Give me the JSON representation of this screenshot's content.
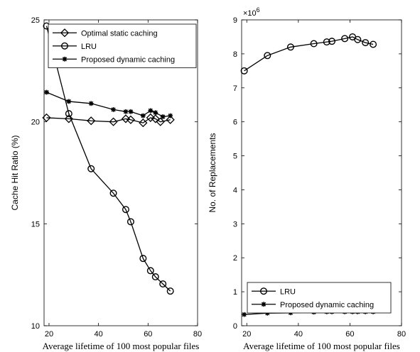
{
  "chart_data": [
    {
      "type": "line",
      "xlabel": "Average lifetime of 100 most popular files",
      "ylabel": "Cache Hit Ratio (%)",
      "xlim": [
        18,
        80
      ],
      "ylim": [
        10,
        25
      ],
      "xticks": [
        "20",
        "40",
        "60",
        "80"
      ],
      "yticks": [
        "10",
        "15",
        "20",
        "25"
      ],
      "grid": false,
      "legend_position": "top-right",
      "series": [
        {
          "name": "Optimal static caching",
          "marker": "diamond",
          "x": [
            19,
            28,
            37,
            46,
            51,
            53,
            58,
            61,
            63,
            65,
            69
          ],
          "y": [
            20.2,
            20.15,
            20.05,
            20.0,
            20.15,
            20.1,
            19.95,
            20.2,
            20.15,
            20.0,
            20.1
          ]
        },
        {
          "name": "LRU",
          "marker": "circle",
          "x": [
            19,
            28,
            37,
            46,
            51,
            53,
            58,
            61,
            63,
            66,
            69
          ],
          "y": [
            24.7,
            20.4,
            17.7,
            16.5,
            15.7,
            15.1,
            13.3,
            12.7,
            12.4,
            12.05,
            11.7
          ]
        },
        {
          "name": "Proposed dynamic caching",
          "marker": "star",
          "x": [
            19,
            28,
            37,
            46,
            51,
            53,
            58,
            61,
            63,
            66,
            69
          ],
          "y": [
            21.45,
            21.0,
            20.9,
            20.6,
            20.5,
            20.5,
            20.3,
            20.55,
            20.45,
            20.25,
            20.3
          ]
        }
      ]
    },
    {
      "type": "line",
      "xlabel": "Average lifetime of 100 most popular files",
      "ylabel": "No. of Replacements",
      "exponent_label": "×10",
      "exponent_power": "6",
      "xlim": [
        18,
        80
      ],
      "ylim": [
        0,
        9
      ],
      "xticks": [
        "20",
        "40",
        "60",
        "80"
      ],
      "yticks": [
        "0",
        "1",
        "2",
        "3",
        "4",
        "5",
        "6",
        "7",
        "8",
        "9"
      ],
      "grid": false,
      "legend_position": "bottom-left",
      "series": [
        {
          "name": "LRU",
          "marker": "circle",
          "x": [
            19,
            28,
            37,
            46,
            51,
            53,
            58,
            61,
            63,
            66,
            69
          ],
          "y": [
            7.5,
            7.95,
            8.2,
            8.3,
            8.35,
            8.37,
            8.45,
            8.5,
            8.42,
            8.33,
            8.28
          ]
        },
        {
          "name": "Proposed dynamic caching",
          "marker": "star",
          "x": [
            19,
            28,
            37,
            46,
            51,
            53,
            58,
            61,
            63,
            66,
            69
          ],
          "y": [
            0.33,
            0.37,
            0.38,
            0.4,
            0.41,
            0.41,
            0.41,
            0.41,
            0.41,
            0.41,
            0.41
          ]
        }
      ]
    }
  ]
}
